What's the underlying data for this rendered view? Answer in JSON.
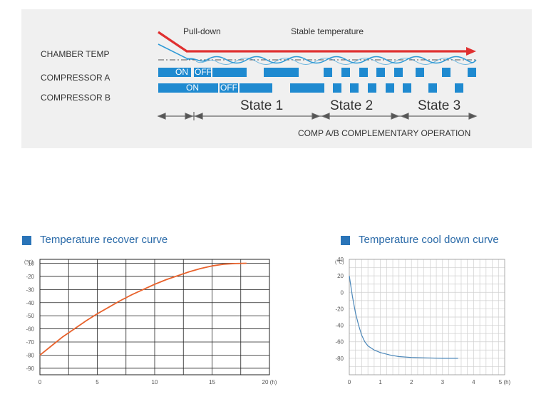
{
  "diagram": {
    "labels": {
      "pulldown": "Pull-down",
      "stable": "Stable temperature",
      "chamber": "CHAMBER TEMP",
      "compA": "COMPRESSOR A",
      "compB": "COMPRESSOR B",
      "on": "ON",
      "off": "OFF",
      "state1": "State 1",
      "state2": "State 2",
      "state3": "State 3",
      "comp_operation": "COMP A/B COMPLEMENTARY OPERATION"
    },
    "colors": {
      "panel_bg": "#f0f0f0",
      "bar_blue": "#1f8ad0",
      "arrow_red": "#e03030",
      "wave_blue": "#2f9ad6"
    }
  },
  "chart_data": [
    {
      "type": "line",
      "title": "Temperature recover curve",
      "y_unit_label": "(℃)",
      "x_unit_label": "(h)",
      "xlim": [
        0,
        20
      ],
      "ylim": [
        -95,
        -7
      ],
      "x_ticks": [
        0,
        5,
        10,
        15,
        20
      ],
      "x_tick_labels": [
        "0",
        "5",
        "10",
        "15",
        "20 (h)"
      ],
      "y_ticks": [
        -10,
        -20,
        -30,
        -40,
        -50,
        -60,
        -70,
        -80,
        -90
      ],
      "y_tick_labels": [
        "-10",
        "-20",
        "-30",
        "-40",
        "-50",
        "-60",
        "-70",
        "-80",
        "-90"
      ],
      "grid": true,
      "line_color": "#e8622c",
      "series": [
        {
          "x": [
            0,
            1,
            2,
            3,
            4,
            5,
            6,
            7,
            8,
            9,
            10,
            11,
            12,
            13,
            14,
            15,
            16,
            17,
            18
          ],
          "values": [
            -80,
            -73,
            -66,
            -60,
            -54,
            -48.5,
            -43.5,
            -38.5,
            -34,
            -30,
            -26,
            -22.5,
            -19.5,
            -16.5,
            -14,
            -12,
            -10.7,
            -10.2,
            -10
          ]
        }
      ]
    },
    {
      "type": "line",
      "title": "Temperature cool down curve",
      "y_unit_label": "(℃)",
      "x_unit_label": "(h)",
      "xlim": [
        0,
        5
      ],
      "ylim": [
        -100,
        40
      ],
      "x_ticks": [
        0,
        1,
        2,
        3,
        4,
        5
      ],
      "x_tick_labels": [
        "0",
        "1",
        "2",
        "3",
        "4",
        "5 (h)"
      ],
      "y_ticks": [
        40,
        20,
        0,
        -20,
        -40,
        -60,
        -80
      ],
      "y_tick_labels": [
        "40",
        "20",
        "0",
        "-20",
        "-40",
        "-60",
        "-80"
      ],
      "grid": true,
      "line_color": "#4a86b8",
      "series": [
        {
          "x": [
            0,
            0.1,
            0.2,
            0.3,
            0.4,
            0.5,
            0.6,
            0.8,
            1.0,
            1.3,
            1.6,
            2.0,
            2.5,
            3.0,
            3.5
          ],
          "values": [
            20,
            -5,
            -25,
            -40,
            -52,
            -60,
            -65,
            -70,
            -73,
            -76,
            -78,
            -79,
            -79.5,
            -80,
            -80
          ]
        }
      ]
    }
  ]
}
